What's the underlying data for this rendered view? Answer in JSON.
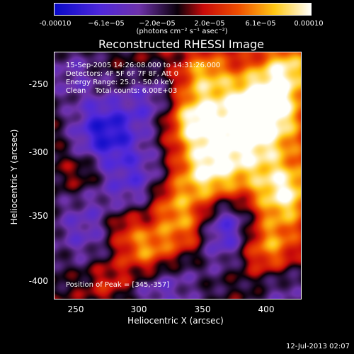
{
  "colorbar": {
    "ticks": [
      "-0.00010",
      "−6.1e−05",
      "−2.0e−05",
      "2.0e−05",
      "6.1e−05",
      "0.00010"
    ],
    "units": "(photons cm⁻² s⁻¹ asec⁻²)",
    "range": [
      -0.0001,
      0.0001
    ]
  },
  "title": "Reconstructed RHESSI Image",
  "annotation": {
    "time": "15-Sep-2005 14:26:08.000 to 14:31:26.000",
    "detectors": "Detectors: 4F 5F 6F 7F 8F, Att 0",
    "energy": "Energy Range: 25.0 - 50.0 keV",
    "clean": "Clean    Total counts: 6.00E+03",
    "peak": "Position of Peak = [345,-357]"
  },
  "axes": {
    "xlabel": "Heliocentric X (arcsec)",
    "ylabel": "Heliocentric Y (arcsec)",
    "xticks": [
      "250",
      "300",
      "350",
      "400"
    ],
    "yticks": [
      "-250",
      "-300",
      "-350",
      "-400"
    ],
    "xrange": [
      235,
      430
    ],
    "yrange": [
      -420,
      -225
    ]
  },
  "datestamp": "12-Jul-2013 02:07"
}
